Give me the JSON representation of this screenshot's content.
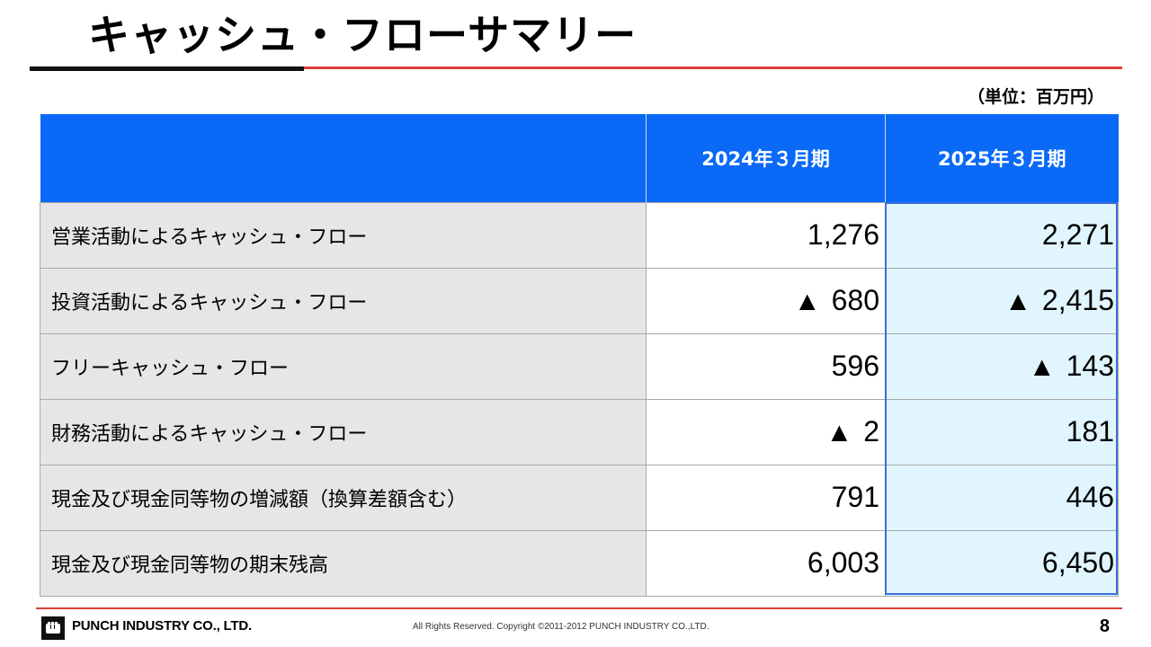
{
  "slide": {
    "title": "キャッシュ・フローサマリー",
    "unit": "（単位：百万円）"
  },
  "table": {
    "headers": [
      "",
      "2024年３月期",
      "2025年３月期"
    ],
    "negative_mark": "▲",
    "rows": [
      {
        "label": "営業活動によるキャッシュ・フロー",
        "fy2024": "1,276",
        "fy2024_negative": false,
        "fy2025": "2,271",
        "fy2025_negative": false
      },
      {
        "label": "投資活動によるキャッシュ・フロー",
        "fy2024": "680",
        "fy2024_negative": true,
        "fy2025": "2,415",
        "fy2025_negative": true
      },
      {
        "label": "フリーキャッシュ・フロー",
        "fy2024": "596",
        "fy2024_negative": false,
        "fy2025": "143",
        "fy2025_negative": true
      },
      {
        "label": "財務活動によるキャッシュ・フロー",
        "fy2024": "2",
        "fy2024_negative": true,
        "fy2025": "181",
        "fy2025_negative": false
      },
      {
        "label": "現金及び現金同等物の増減額（換算差額含む）",
        "fy2024": "791",
        "fy2024_negative": false,
        "fy2025": "446",
        "fy2025_negative": false
      },
      {
        "label": "現金及び現金同等物の期末残高",
        "fy2024": "6,003",
        "fy2024_negative": false,
        "fy2025": "6,450",
        "fy2025_negative": false
      }
    ]
  },
  "footer": {
    "company": "PUNCH INDUSTRY CO., LTD.",
    "copyright": "All Rights Reserved. Copyright ©2011-2012  PUNCH  INDUSTRY  CO.,LTD.",
    "page_number": "8",
    "logo_icon": "fist-logo-icon"
  },
  "colors": {
    "header_blue": "#0a6af7",
    "label_gray": "#e6e6e6",
    "highlight_cyan": "#e0f5fd",
    "accent_red": "#d9413a",
    "highlight_border": "#3b6fd9"
  }
}
